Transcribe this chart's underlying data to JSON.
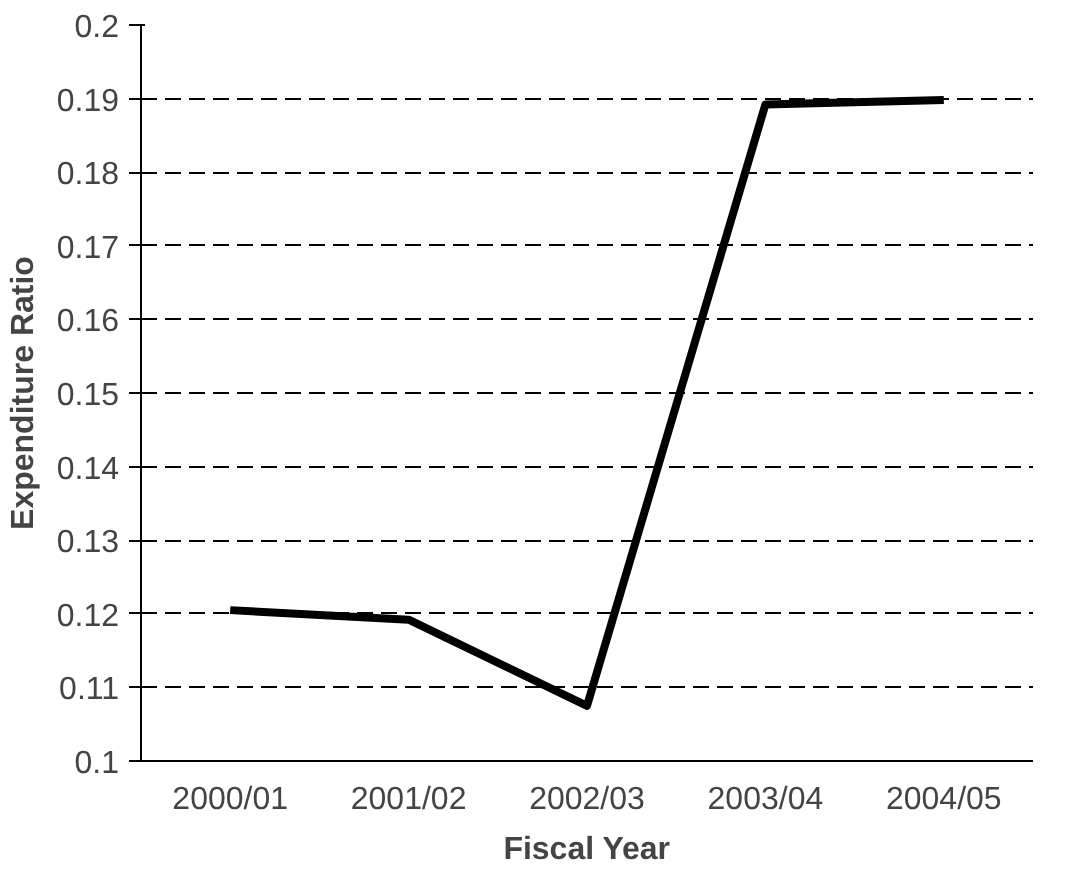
{
  "chart_data": {
    "type": "line",
    "xlabel": "Fiscal Year",
    "ylabel": "Expenditure Ratio",
    "categories": [
      "2000/01",
      "2001/02",
      "2002/03",
      "2003/04",
      "2004/05"
    ],
    "series": [
      {
        "color": "#000000",
        "values": [
          0.1205,
          0.1192,
          0.1075,
          0.1892,
          0.1898
        ]
      }
    ],
    "ylim": [
      0.1,
      0.2
    ],
    "yticks": [
      {
        "value": 0.1,
        "label": "0.1"
      },
      {
        "value": 0.11,
        "label": "0.11"
      },
      {
        "value": 0.12,
        "label": "0.12"
      },
      {
        "value": 0.13,
        "label": "0.13"
      },
      {
        "value": 0.14,
        "label": "0.14"
      },
      {
        "value": 0.15,
        "label": "0.15"
      },
      {
        "value": 0.16,
        "label": "0.16"
      },
      {
        "value": 0.17,
        "label": "0.17"
      },
      {
        "value": 0.18,
        "label": "0.18"
      },
      {
        "value": 0.19,
        "label": "0.19"
      },
      {
        "value": 0.2,
        "label": "0.2"
      }
    ],
    "grid": "y",
    "line_style": "solid",
    "marker": "none"
  }
}
